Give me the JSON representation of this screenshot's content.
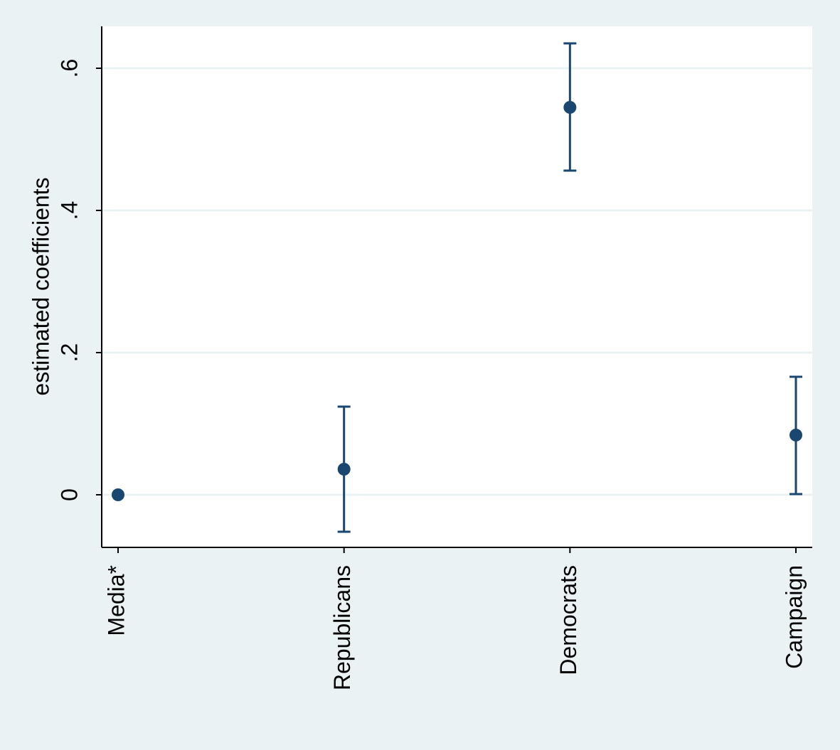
{
  "chart_data": {
    "type": "errorbar",
    "y_label": "estimated coefficients",
    "categories": [
      "Media*",
      "Republicans",
      "Democrats",
      "Campaign"
    ],
    "series": [
      {
        "color": "#1a476f",
        "values": [
          0,
          0.036,
          0.545,
          0.084
        ],
        "lower": [
          null,
          -0.052,
          0.456,
          0.001
        ],
        "upper": [
          null,
          0.124,
          0.635,
          0.166
        ]
      }
    ],
    "ylim": [
      -0.074,
      0.659
    ],
    "yticks": [
      0,
      {
        "value": 0.2,
        "label": ".2"
      },
      {
        "value": 0.4,
        "label": ".4"
      },
      {
        "value": 0.6,
        "label": ".6"
      }
    ],
    "grid": true
  }
}
